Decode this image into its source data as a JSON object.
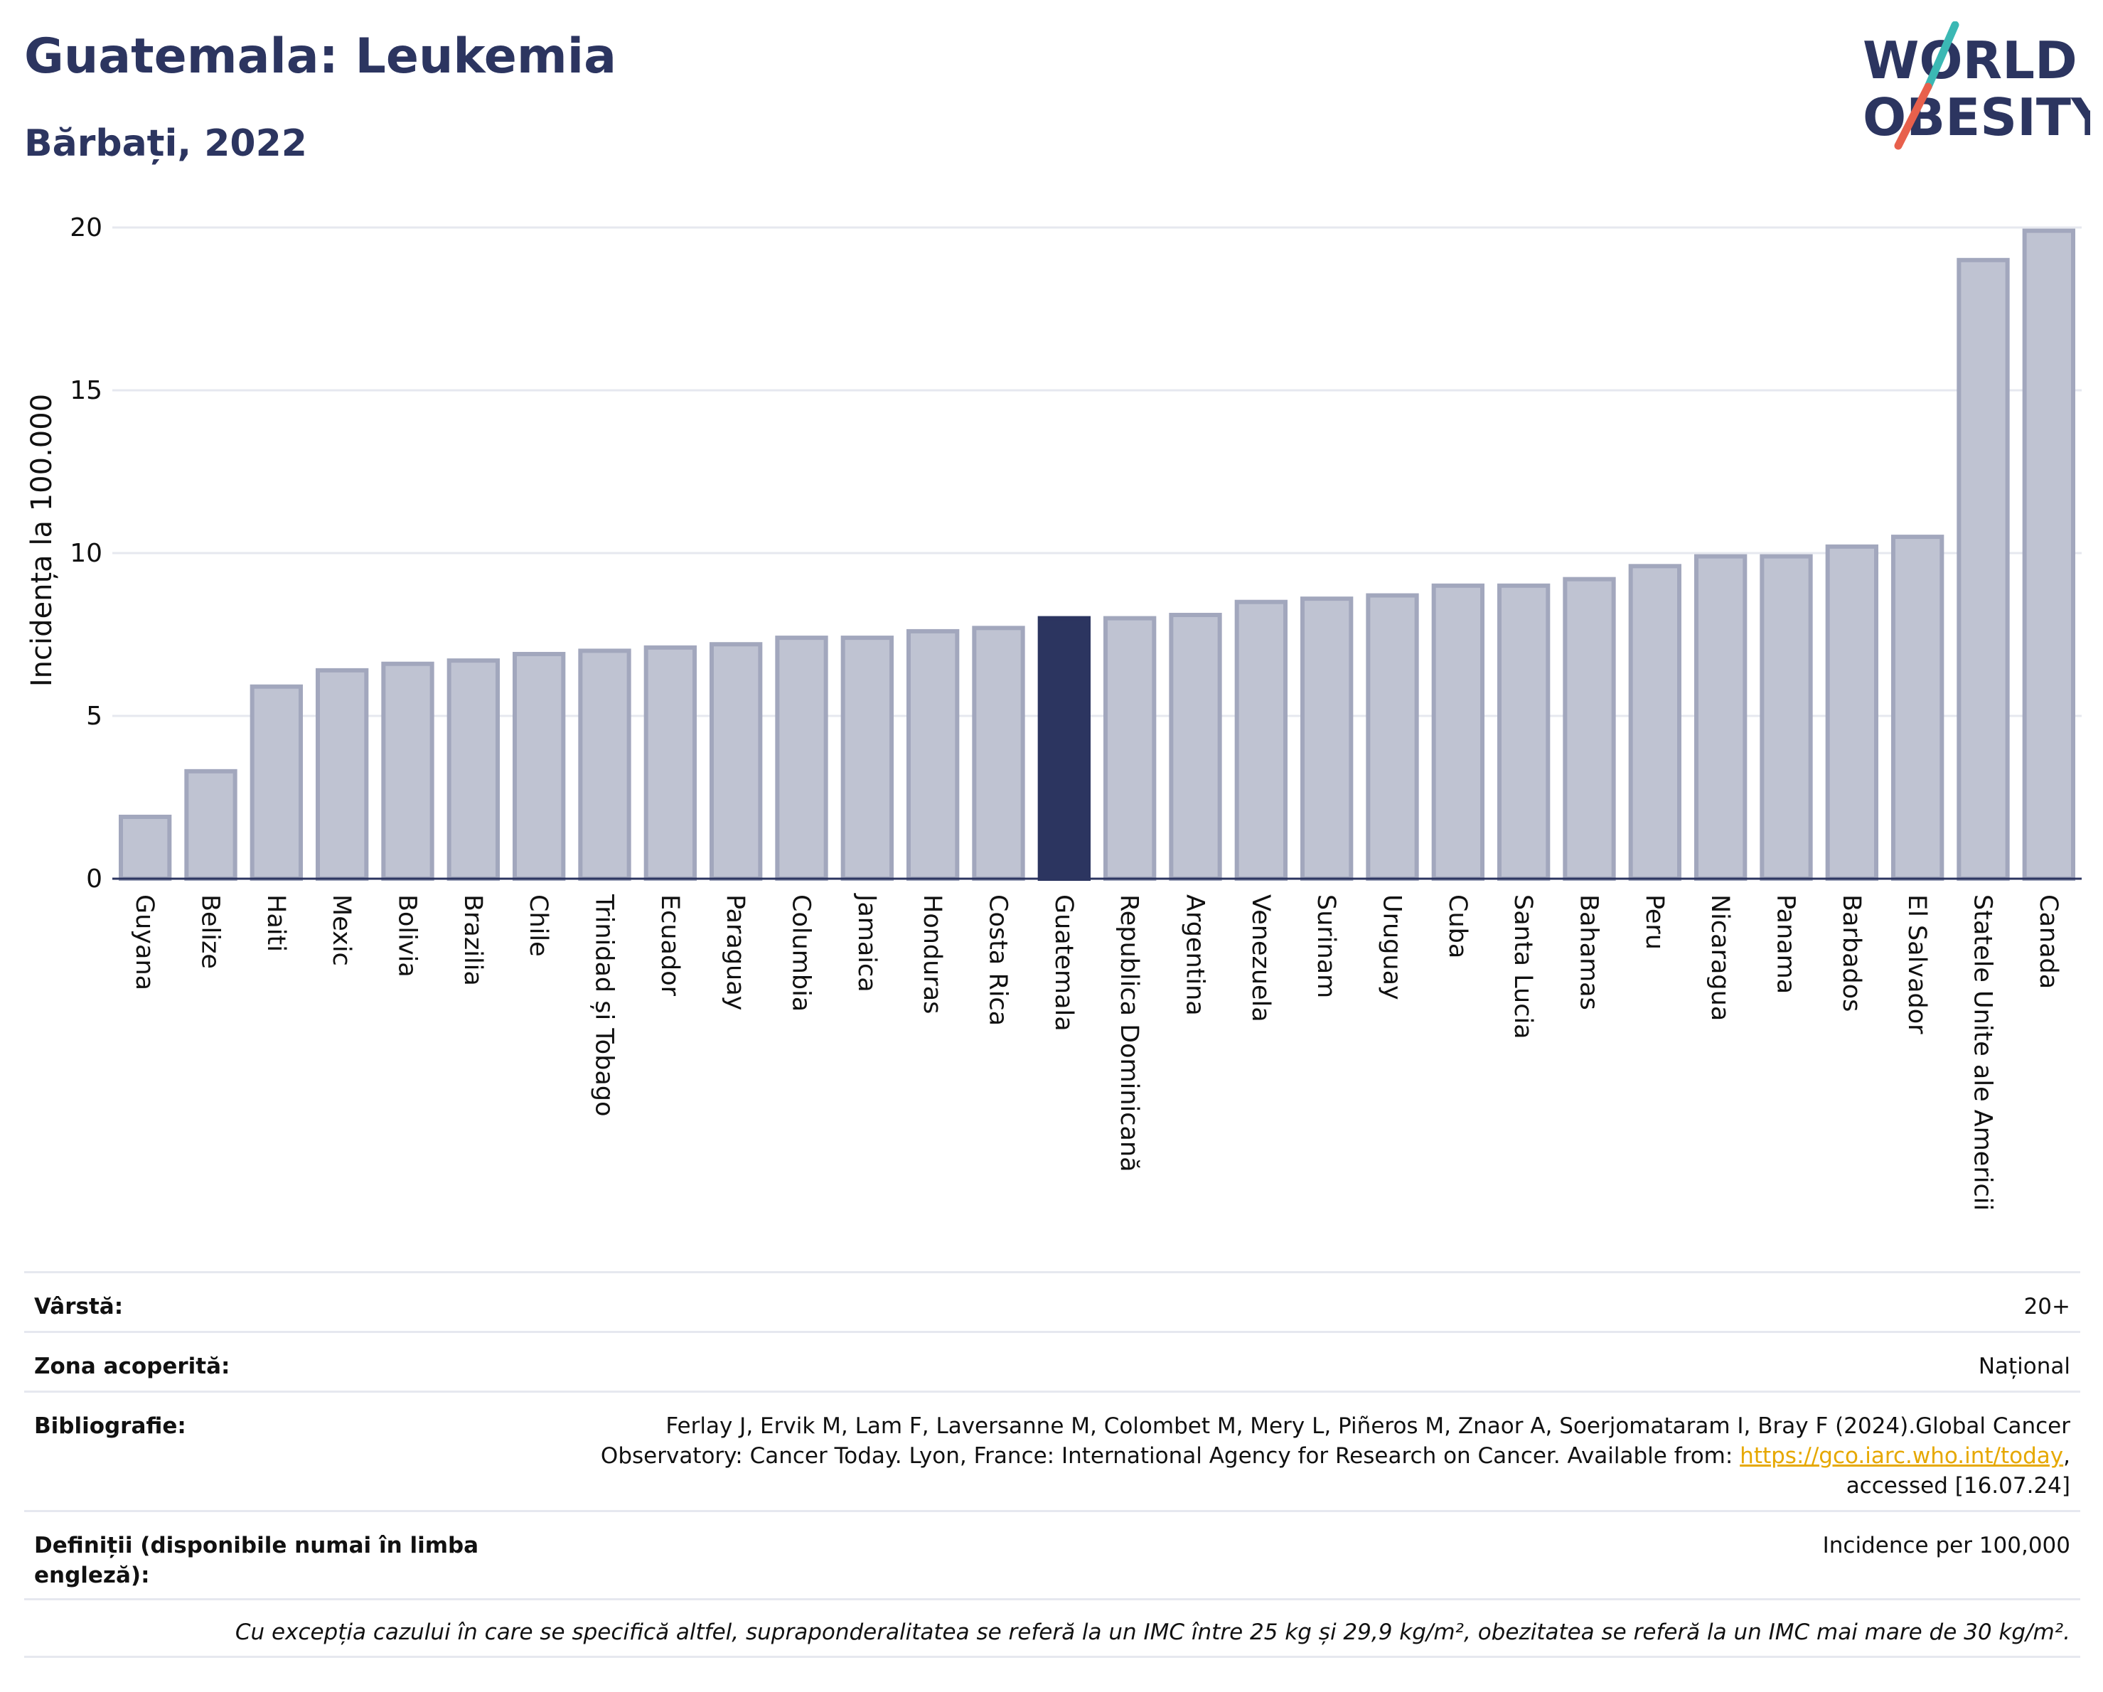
{
  "title": "Guatemala: Leukemia",
  "subtitle": "Bărbați, 2022",
  "logo": {
    "line1": "WORLD",
    "line2": "OBESITY",
    "accent_teal": "#3bb8b4",
    "accent_red": "#e8604c",
    "text_color": "#2c3560"
  },
  "colors": {
    "bar": "#bfc3d2",
    "bar_border": "#a2a7bd",
    "highlight": "#2c3560"
  },
  "chart_data": {
    "type": "bar",
    "ylabel": "Incidența la 100.000",
    "ylim": [
      0,
      20
    ],
    "yticks": [
      0,
      5,
      10,
      15,
      20
    ],
    "grid": true,
    "highlight": "Guatemala",
    "categories": [
      "Guyana",
      "Belize",
      "Haiti",
      "Mexic",
      "Bolivia",
      "Brazilia",
      "Chile",
      "Trinidad și Tobago",
      "Ecuador",
      "Paraguay",
      "Columbia",
      "Jamaica",
      "Honduras",
      "Costa Rica",
      "Guatemala",
      "Republica Dominicană",
      "Argentina",
      "Venezuela",
      "Surinam",
      "Uruguay",
      "Cuba",
      "Santa Lucia",
      "Bahamas",
      "Peru",
      "Nicaragua",
      "Panama",
      "Barbados",
      "El Salvador",
      "Statele Unite ale Americii",
      "Canada"
    ],
    "values": [
      1.9,
      3.3,
      5.9,
      6.4,
      6.6,
      6.7,
      6.9,
      7.0,
      7.1,
      7.2,
      7.4,
      7.4,
      7.6,
      7.7,
      8.0,
      8.0,
      8.1,
      8.5,
      8.6,
      8.7,
      9.0,
      9.0,
      9.2,
      9.6,
      9.9,
      9.9,
      10.2,
      10.5,
      19.0,
      19.9
    ]
  },
  "meta": {
    "age_label": "Vârstă:",
    "age_value": "20+",
    "coverage_label": "Zona acoperită:",
    "coverage_value": "Național",
    "biblio_label": "Bibliografie:",
    "biblio_line1": "Ferlay J, Ervik M, Lam F, Laversanne M, Colombet M, Mery L, Piñeros M, Znaor A, Soerjomataram I, Bray F (2024).Global Cancer",
    "biblio_line2": "Observatory: Cancer Today. Lyon, France: International Agency for Research on Cancer. Available from: ",
    "biblio_link": "https://gco.iarc.who.int/today",
    "biblio_comma": ",",
    "biblio_line3": "accessed [16.07.24]",
    "defs_label": "Definiții (disponibile numai în limba engleză):",
    "defs_value": "Incidence per 100,000",
    "note": "Cu excepția cazului în care se specifică altfel, supraponderalitatea se referă la un IMC între 25 kg și 29,9 kg/m², obezitatea se referă la un IMC mai mare de 30 kg/m²."
  }
}
